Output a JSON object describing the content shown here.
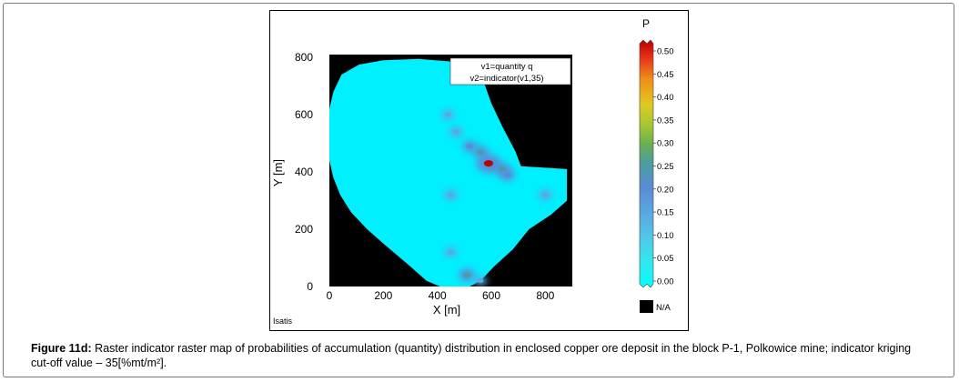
{
  "chart_data": {
    "type": "heatmap",
    "xlabel": "X [m]",
    "ylabel": "Y [m]",
    "xlim": [
      0,
      900
    ],
    "ylim": [
      0,
      810
    ],
    "x_ticks": [
      0,
      200,
      400,
      600,
      800
    ],
    "y_ticks": [
      0,
      200,
      400,
      600,
      800
    ],
    "legend_box": [
      "v1=quantity q",
      "v2=indicator(v1,35)"
    ],
    "colorbar": {
      "title": "P",
      "range": [
        -0.02,
        0.53
      ],
      "ticks": [
        "0.00",
        "0.05",
        "0.10",
        "0.15",
        "0.20",
        "0.25",
        "0.30",
        "0.35",
        "0.40",
        "0.45",
        "0.50"
      ],
      "na_label": "N/A",
      "colors": [
        "#00ffff",
        "#30e8f0",
        "#4fc8e8",
        "#5aa8e0",
        "#5a8cd6",
        "#4c9ca0",
        "#6ab050",
        "#a8c830",
        "#e0c820",
        "#f09018",
        "#e83018",
        "#b80000"
      ]
    },
    "domain_polygon": [
      [
        0,
        620
      ],
      [
        15,
        680
      ],
      [
        45,
        740
      ],
      [
        110,
        775
      ],
      [
        200,
        790
      ],
      [
        330,
        795
      ],
      [
        460,
        785
      ],
      [
        570,
        720
      ],
      [
        600,
        640
      ],
      [
        640,
        560
      ],
      [
        690,
        470
      ],
      [
        710,
        420
      ],
      [
        880,
        410
      ],
      [
        880,
        300
      ],
      [
        820,
        250
      ],
      [
        740,
        200
      ],
      [
        680,
        130
      ],
      [
        610,
        70
      ],
      [
        560,
        20
      ],
      [
        520,
        0
      ],
      [
        410,
        0
      ],
      [
        360,
        20
      ],
      [
        300,
        70
      ],
      [
        250,
        110
      ],
      [
        200,
        150
      ],
      [
        140,
        200
      ],
      [
        80,
        260
      ],
      [
        40,
        320
      ],
      [
        15,
        380
      ],
      [
        0,
        440
      ]
    ],
    "hotspots": [
      {
        "x": 440,
        "y": 600,
        "p": 0.12
      },
      {
        "x": 470,
        "y": 540,
        "p": 0.15
      },
      {
        "x": 520,
        "y": 490,
        "p": 0.18
      },
      {
        "x": 560,
        "y": 470,
        "p": 0.22
      },
      {
        "x": 590,
        "y": 430,
        "p": 0.52
      },
      {
        "x": 640,
        "y": 410,
        "p": 0.25
      },
      {
        "x": 660,
        "y": 390,
        "p": 0.2
      },
      {
        "x": 450,
        "y": 320,
        "p": 0.15
      },
      {
        "x": 800,
        "y": 320,
        "p": 0.15
      },
      {
        "x": 450,
        "y": 120,
        "p": 0.12
      },
      {
        "x": 510,
        "y": 40,
        "p": 0.25
      },
      {
        "x": 560,
        "y": 20,
        "p": 0.12
      }
    ]
  },
  "footer_label": "Isatis",
  "caption": {
    "label": "Figure 11d:",
    "text": " Raster indicator raster map of probabilities of accumulation (quantity) distribution in enclosed copper ore deposit in the block P-1, Polkowice mine; indicator kriging cut-off value  – 35[%mt/m²]."
  }
}
